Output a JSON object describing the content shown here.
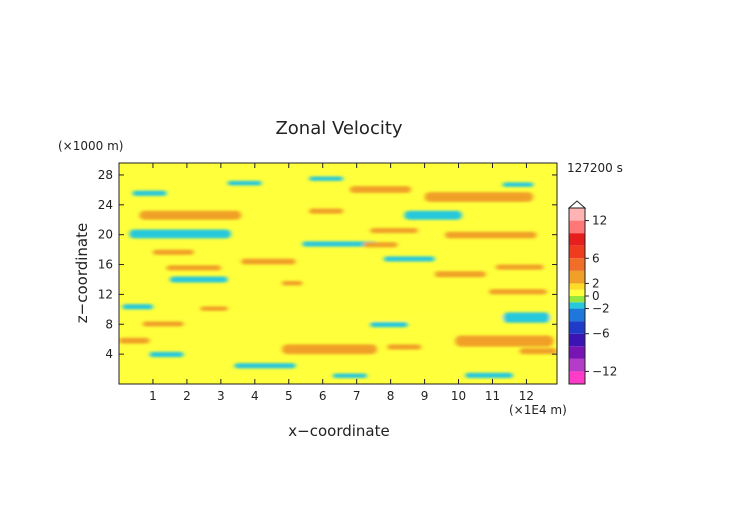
{
  "chart_data": {
    "type": "heatmap",
    "title": "Zonal Velocity",
    "xlabel": "x−coordinate",
    "ylabel": "z−coordinate",
    "x_unit": "(×1E4 m)",
    "y_unit": "(×1000 m)",
    "time_label": "127200 s",
    "xlim": [
      0,
      12.9
    ],
    "ylim": [
      0,
      29.6
    ],
    "x_ticks": [
      1,
      2,
      3,
      4,
      5,
      6,
      7,
      8,
      9,
      10,
      11,
      12
    ],
    "y_ticks": [
      4,
      8,
      12,
      16,
      20,
      24,
      28
    ],
    "colorbar": {
      "levels": [
        -14,
        -12,
        -10,
        -8,
        -6,
        -4,
        -2,
        -1,
        0,
        1,
        2,
        4,
        6,
        8,
        10,
        12,
        14
      ],
      "colors": [
        "#ff3cc8",
        "#b43cc8",
        "#7814b4",
        "#3c14b4",
        "#1e3cc8",
        "#1e78dc",
        "#28c8dc",
        "#96e63c",
        "#ffff3c",
        "#ffdc28",
        "#f0a028",
        "#f06e28",
        "#f03c1e",
        "#e61e1e",
        "#ff7878",
        "#ffb4b4"
      ],
      "tick_labels": [
        {
          "value": -12,
          "label": "−12"
        },
        {
          "value": -6,
          "label": "−6"
        },
        {
          "value": -2,
          "label": "−2"
        },
        {
          "value": 0,
          "label": "0"
        },
        {
          "value": 2,
          "label": "2"
        },
        {
          "value": 6,
          "label": "6"
        },
        {
          "value": 12,
          "label": "12"
        }
      ],
      "extend_top": true
    },
    "field": {
      "background": 0.3,
      "bands": [
        {
          "x": [
            0.0,
            12.9
          ],
          "z": [
            8.5,
            9.3
          ],
          "value": 0.5
        },
        {
          "x": [
            0.4,
            1.4
          ],
          "z": [
            25.2,
            25.9
          ],
          "value": -1.5
        },
        {
          "x": [
            0.6,
            3.6
          ],
          "z": [
            22.0,
            23.2
          ],
          "value": 3.0
        },
        {
          "x": [
            0.3,
            3.3
          ],
          "z": [
            19.5,
            20.7
          ],
          "value": -1.5
        },
        {
          "x": [
            1.0,
            2.2
          ],
          "z": [
            17.3,
            18.0
          ],
          "value": 3.0
        },
        {
          "x": [
            1.4,
            3.0
          ],
          "z": [
            15.2,
            15.9
          ],
          "value": 3.0
        },
        {
          "x": [
            1.5,
            3.2
          ],
          "z": [
            13.6,
            14.4
          ],
          "value": -1.5
        },
        {
          "x": [
            0.1,
            1.0
          ],
          "z": [
            10.0,
            10.7
          ],
          "value": -1.5
        },
        {
          "x": [
            0.7,
            1.9
          ],
          "z": [
            7.7,
            8.4
          ],
          "value": 3.0
        },
        {
          "x": [
            2.4,
            3.2
          ],
          "z": [
            9.8,
            10.4
          ],
          "value": 3.0
        },
        {
          "x": [
            0.0,
            0.9
          ],
          "z": [
            5.4,
            6.2
          ],
          "value": 3.0
        },
        {
          "x": [
            3.6,
            5.2
          ],
          "z": [
            16.0,
            16.8
          ],
          "value": 3.0
        },
        {
          "x": [
            4.8,
            5.4
          ],
          "z": [
            13.2,
            13.8
          ],
          "value": 3.0
        },
        {
          "x": [
            5.6,
            6.6
          ],
          "z": [
            22.8,
            23.5
          ],
          "value": 3.0
        },
        {
          "x": [
            5.4,
            7.6
          ],
          "z": [
            18.4,
            19.1
          ],
          "value": -1.5
        },
        {
          "x": [
            7.2,
            8.2
          ],
          "z": [
            18.3,
            19.0
          ],
          "value": 3.0
        },
        {
          "x": [
            6.8,
            8.6
          ],
          "z": [
            25.6,
            26.5
          ],
          "value": 3.0
        },
        {
          "x": [
            8.4,
            10.1
          ],
          "z": [
            22.0,
            23.2
          ],
          "value": -1.5
        },
        {
          "x": [
            9.0,
            12.2
          ],
          "z": [
            24.4,
            25.7
          ],
          "value": 3.0
        },
        {
          "x": [
            11.3,
            12.2
          ],
          "z": [
            26.4,
            27.0
          ],
          "value": -1.5
        },
        {
          "x": [
            9.6,
            12.3
          ],
          "z": [
            19.5,
            20.4
          ],
          "value": 3.0
        },
        {
          "x": [
            7.4,
            8.8
          ],
          "z": [
            20.2,
            20.9
          ],
          "value": 3.0
        },
        {
          "x": [
            9.3,
            10.8
          ],
          "z": [
            14.3,
            15.1
          ],
          "value": 3.0
        },
        {
          "x": [
            11.1,
            12.5
          ],
          "z": [
            15.3,
            16.0
          ],
          "value": 3.0
        },
        {
          "x": [
            7.8,
            9.3
          ],
          "z": [
            16.4,
            17.1
          ],
          "value": -1.5
        },
        {
          "x": [
            10.9,
            12.6
          ],
          "z": [
            12.0,
            12.7
          ],
          "value": 3.0
        },
        {
          "x": [
            11.3,
            12.7
          ],
          "z": [
            8.2,
            9.6
          ],
          "value": -1.5
        },
        {
          "x": [
            7.4,
            8.5
          ],
          "z": [
            7.6,
            8.3
          ],
          "value": -1.5
        },
        {
          "x": [
            4.8,
            7.6
          ],
          "z": [
            4.0,
            5.3
          ],
          "value": 3.0
        },
        {
          "x": [
            9.9,
            12.8
          ],
          "z": [
            5.0,
            6.5
          ],
          "value": 3.0
        },
        {
          "x": [
            7.9,
            8.9
          ],
          "z": [
            4.6,
            5.3
          ],
          "value": 3.0
        },
        {
          "x": [
            11.8,
            12.9
          ],
          "z": [
            4.0,
            4.8
          ],
          "value": 3.0
        },
        {
          "x": [
            3.4,
            5.2
          ],
          "z": [
            2.1,
            2.8
          ],
          "value": -1.5
        },
        {
          "x": [
            0.9,
            1.9
          ],
          "z": [
            3.6,
            4.3
          ],
          "value": -1.5
        },
        {
          "x": [
            10.2,
            11.6
          ],
          "z": [
            0.8,
            1.5
          ],
          "value": -1.5
        },
        {
          "x": [
            6.3,
            7.3
          ],
          "z": [
            0.8,
            1.4
          ],
          "value": -1.5
        },
        {
          "x": [
            3.2,
            4.2
          ],
          "z": [
            26.6,
            27.2
          ],
          "value": -1.5
        },
        {
          "x": [
            5.6,
            6.6
          ],
          "z": [
            27.2,
            27.8
          ],
          "value": -1.5
        }
      ]
    }
  }
}
